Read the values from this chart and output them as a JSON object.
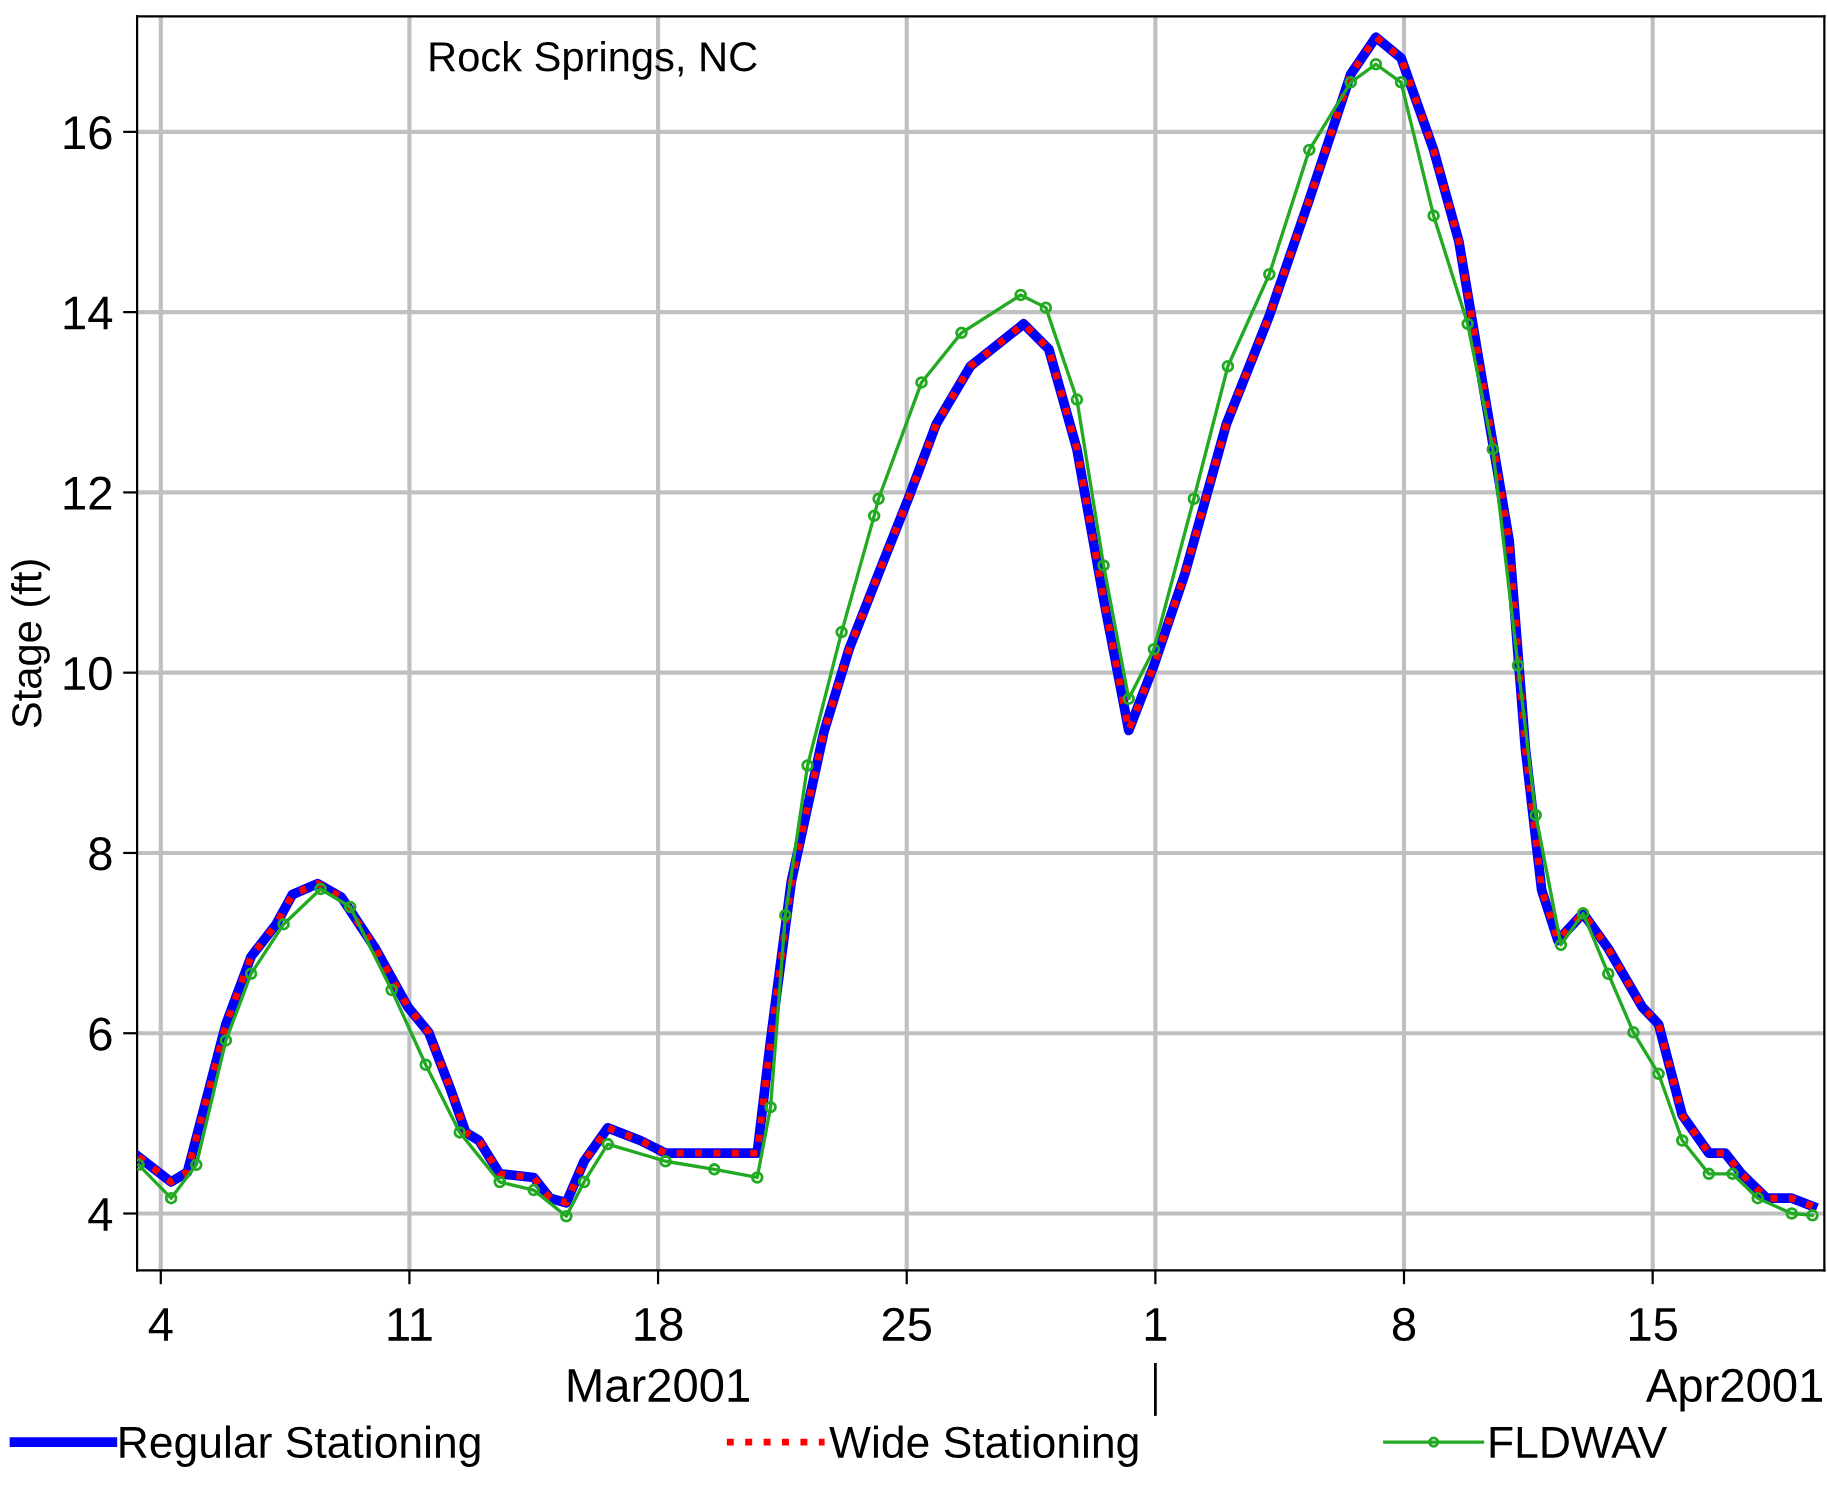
{
  "chart_data": {
    "type": "line",
    "title": "Rock Springs, NC",
    "ylabel": "Stage (ft)",
    "annotations": [
      "Mar2001",
      "Apr2001"
    ],
    "xlim": [
      "2001-03-03T08:00",
      "2001-04-19T20:00"
    ],
    "ylim": [
      3.37,
      17.28
    ],
    "xticks": [
      {
        "value": "2001-03-04",
        "label": "4"
      },
      {
        "value": "2001-03-11",
        "label": "11"
      },
      {
        "value": "2001-03-18",
        "label": "18"
      },
      {
        "value": "2001-03-25",
        "label": "25"
      },
      {
        "value": "2001-04-01",
        "label": "1"
      },
      {
        "value": "2001-04-08",
        "label": "8"
      },
      {
        "value": "2001-04-15",
        "label": "15"
      }
    ],
    "yticks": [
      4,
      6,
      8,
      10,
      12,
      14,
      16
    ],
    "grid": true,
    "legend": "bottom",
    "series": [
      {
        "name": "Regular Stationing",
        "color": "#0000ff",
        "line_style": "solid",
        "marker": "none",
        "x": [
          "2001-03-03T09:00",
          "2001-03-04T07:00",
          "2001-03-04T18:00",
          "2001-03-05T20:00",
          "2001-03-06T13:00",
          "2001-03-07T06:00",
          "2001-03-07T17:00",
          "2001-03-08T10:00",
          "2001-03-09T02:00",
          "2001-03-10T01:00",
          "2001-03-10T23:00",
          "2001-03-11T13:00",
          "2001-03-12T04:00",
          "2001-03-12T14:00",
          "2001-03-12T23:00",
          "2001-03-13T13:00",
          "2001-03-14T12:00",
          "2001-03-14T23:00",
          "2001-03-15T10:00",
          "2001-03-15T22:00",
          "2001-03-16T14:00",
          "2001-03-17T12:00",
          "2001-03-18T05:00",
          "2001-03-19T10:00",
          "2001-03-20T02:00",
          "2001-03-20T19:00",
          "2001-03-21T04:00",
          "2001-03-21T18:00",
          "2001-03-22T16:00",
          "2001-03-23T09:00",
          "2001-03-24T05:00",
          "2001-03-25T01:00",
          "2001-03-25T20:00",
          "2001-03-26T19:00",
          "2001-03-28T07:00",
          "2001-03-29T00:00",
          "2001-03-29T19:00",
          "2001-03-30T13:00",
          "2001-03-31T06:00",
          "2001-03-31T23:00",
          "2001-04-01T20:00",
          "2001-04-03T00:00",
          "2001-04-04T05:00",
          "2001-04-05T08:00",
          "2001-04-06T12:00",
          "2001-04-07T05:00",
          "2001-04-07T22:00",
          "2001-04-08T20:00",
          "2001-04-09T13:00",
          "2001-04-10T06:00",
          "2001-04-10T23:00",
          "2001-04-11T10:00",
          "2001-04-11T21:00",
          "2001-04-12T08:00",
          "2001-04-13T01:00",
          "2001-04-13T18:00",
          "2001-04-14T17:00",
          "2001-04-15T04:00",
          "2001-04-15T20:00",
          "2001-04-16T14:00",
          "2001-04-17T01:00",
          "2001-04-17T12:00",
          "2001-04-18T05:00",
          "2001-04-18T22:00",
          "2001-04-19T12:00"
        ],
        "values": [
          4.63,
          4.35,
          4.46,
          6.1,
          6.85,
          7.21,
          7.54,
          7.66,
          7.51,
          6.94,
          6.29,
          6.01,
          5.37,
          4.9,
          4.81,
          4.44,
          4.4,
          4.17,
          4.12,
          4.58,
          4.95,
          4.81,
          4.67,
          4.67,
          4.67,
          4.67,
          5.92,
          7.68,
          9.34,
          10.26,
          11.1,
          11.93,
          12.76,
          13.4,
          13.87,
          13.59,
          12.48,
          10.82,
          9.36,
          10.08,
          11.1,
          12.76,
          13.96,
          15.25,
          16.64,
          17.05,
          16.82,
          15.8,
          14.79,
          13.13,
          11.47,
          9.16,
          7.59,
          7.03,
          7.33,
          6.94,
          6.29,
          6.1,
          5.09,
          4.67,
          4.67,
          4.44,
          4.17,
          4.17,
          4.08
        ]
      },
      {
        "name": "Wide Stationing",
        "color": "#ff0000",
        "line_style": "dotted",
        "marker": "none",
        "x": [
          "2001-03-03T09:00",
          "2001-03-04T07:00",
          "2001-03-04T18:00",
          "2001-03-05T20:00",
          "2001-03-06T13:00",
          "2001-03-07T06:00",
          "2001-03-07T17:00",
          "2001-03-08T10:00",
          "2001-03-09T02:00",
          "2001-03-10T01:00",
          "2001-03-10T23:00",
          "2001-03-11T13:00",
          "2001-03-12T04:00",
          "2001-03-12T14:00",
          "2001-03-12T23:00",
          "2001-03-13T13:00",
          "2001-03-14T12:00",
          "2001-03-14T23:00",
          "2001-03-15T10:00",
          "2001-03-15T22:00",
          "2001-03-16T14:00",
          "2001-03-17T12:00",
          "2001-03-18T05:00",
          "2001-03-19T10:00",
          "2001-03-20T02:00",
          "2001-03-20T19:00",
          "2001-03-21T04:00",
          "2001-03-21T18:00",
          "2001-03-22T16:00",
          "2001-03-23T09:00",
          "2001-03-24T05:00",
          "2001-03-25T01:00",
          "2001-03-25T20:00",
          "2001-03-26T19:00",
          "2001-03-28T07:00",
          "2001-03-29T00:00",
          "2001-03-29T19:00",
          "2001-03-30T13:00",
          "2001-03-31T06:00",
          "2001-03-31T23:00",
          "2001-04-01T20:00",
          "2001-04-03T00:00",
          "2001-04-04T05:00",
          "2001-04-05T08:00",
          "2001-04-06T12:00",
          "2001-04-07T05:00",
          "2001-04-07T22:00",
          "2001-04-08T20:00",
          "2001-04-09T13:00",
          "2001-04-10T06:00",
          "2001-04-10T23:00",
          "2001-04-11T10:00",
          "2001-04-11T21:00",
          "2001-04-12T08:00",
          "2001-04-13T01:00",
          "2001-04-13T18:00",
          "2001-04-14T17:00",
          "2001-04-15T04:00",
          "2001-04-15T20:00",
          "2001-04-16T14:00",
          "2001-04-17T01:00",
          "2001-04-17T12:00",
          "2001-04-18T05:00",
          "2001-04-18T22:00",
          "2001-04-19T12:00"
        ],
        "values": [
          4.63,
          4.35,
          4.46,
          6.1,
          6.85,
          7.21,
          7.54,
          7.66,
          7.51,
          6.94,
          6.29,
          6.01,
          5.37,
          4.9,
          4.81,
          4.44,
          4.4,
          4.17,
          4.12,
          4.58,
          4.95,
          4.81,
          4.67,
          4.67,
          4.67,
          4.67,
          5.92,
          7.68,
          9.34,
          10.26,
          11.1,
          11.93,
          12.76,
          13.4,
          13.87,
          13.59,
          12.48,
          10.82,
          9.36,
          10.08,
          11.1,
          12.76,
          13.96,
          15.25,
          16.64,
          17.05,
          16.82,
          15.8,
          14.79,
          13.13,
          11.47,
          9.16,
          7.59,
          7.03,
          7.33,
          6.94,
          6.29,
          6.1,
          5.09,
          4.67,
          4.67,
          4.44,
          4.17,
          4.17,
          4.08
        ]
      },
      {
        "name": "FLDWAV",
        "color": "#22aa22",
        "line_style": "solid",
        "marker": "circle",
        "x": [
          "2001-03-03T09:00",
          "2001-03-04T07:00",
          "2001-03-05T00:00",
          "2001-03-05T20:00",
          "2001-03-06T13:00",
          "2001-03-07T11:00",
          "2001-03-08T12:00",
          "2001-03-09T08:00",
          "2001-03-10T12:00",
          "2001-03-11T11:00",
          "2001-03-12T10:00",
          "2001-03-13T13:00",
          "2001-03-14T12:00",
          "2001-03-15T10:00",
          "2001-03-15T22:00",
          "2001-03-16T14:00",
          "2001-03-18T05:00",
          "2001-03-19T14:00",
          "2001-03-20T19:00",
          "2001-03-21T04:00",
          "2001-03-21T14:00",
          "2001-03-22T05:00",
          "2001-03-23T04:00",
          "2001-03-24T02:00",
          "2001-03-24T05:00",
          "2001-03-25T10:00",
          "2001-03-26T13:00",
          "2001-03-28T05:00",
          "2001-03-28T22:00",
          "2001-03-29T19:00",
          "2001-03-30T13:00",
          "2001-03-31T06:00",
          "2001-03-31T23:00",
          "2001-04-02T02:00",
          "2001-04-03T01:00",
          "2001-04-04T05:00",
          "2001-04-05T08:00",
          "2001-04-06T12:00",
          "2001-04-07T05:00",
          "2001-04-07T22:00",
          "2001-04-08T20:00",
          "2001-04-09T19:00",
          "2001-04-10T12:00",
          "2001-04-11T05:00",
          "2001-04-11T17:00",
          "2001-04-12T10:00",
          "2001-04-13T01:00",
          "2001-04-13T18:00",
          "2001-04-14T11:00",
          "2001-04-15T04:00",
          "2001-04-15T20:00",
          "2001-04-16T14:00",
          "2001-04-17T06:00",
          "2001-04-17T23:00",
          "2001-04-18T22:00",
          "2001-04-19T12:00"
        ],
        "values": [
          4.54,
          4.17,
          4.54,
          5.92,
          6.66,
          7.21,
          7.6,
          7.4,
          6.48,
          5.65,
          4.9,
          4.35,
          4.26,
          3.97,
          4.35,
          4.77,
          4.58,
          4.49,
          4.4,
          5.18,
          7.31,
          8.97,
          10.45,
          11.74,
          11.93,
          13.22,
          13.77,
          14.19,
          14.05,
          13.03,
          11.19,
          9.71,
          10.26,
          11.93,
          13.4,
          14.42,
          15.8,
          16.55,
          16.75,
          16.55,
          15.07,
          13.87,
          12.48,
          10.08,
          8.42,
          6.98,
          7.33,
          6.66,
          6.01,
          5.55,
          4.81,
          4.44,
          4.44,
          4.17,
          4.0,
          3.98
        ]
      }
    ]
  }
}
